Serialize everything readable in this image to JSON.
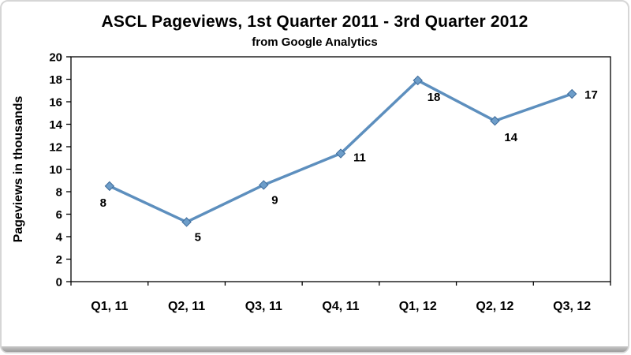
{
  "chart_data": {
    "type": "line",
    "title": "ASCL Pageviews, 1st Quarter 2011 - 3rd Quarter 2012",
    "subtitle": "from Google Analytics",
    "ylabel": "Pageviews in thousands",
    "xlabel": "",
    "categories": [
      "Q1, 11",
      "Q2, 11",
      "Q3, 11",
      "Q4, 11",
      "Q1, 12",
      "Q2, 12",
      "Q3, 12"
    ],
    "values": [
      8.5,
      5.3,
      8.6,
      11.4,
      17.9,
      14.3,
      16.7
    ],
    "data_labels": [
      "8",
      "5",
      "9",
      "11",
      "18",
      "14",
      "17"
    ],
    "label_offsets": [
      [
        -8,
        26,
        "middle"
      ],
      [
        10,
        24,
        "start"
      ],
      [
        10,
        24,
        "start"
      ],
      [
        16,
        10,
        "start"
      ],
      [
        12,
        26,
        "start"
      ],
      [
        12,
        26,
        "start"
      ],
      [
        16,
        6,
        "start"
      ]
    ],
    "ylim": [
      0,
      20
    ],
    "ytick_step": 2,
    "grid": false,
    "legend": "none",
    "line_color": "#5D8FBE",
    "marker_color": "#6D9DC9",
    "marker_stroke": "#3E6B9A",
    "axis_color": "#000000"
  }
}
